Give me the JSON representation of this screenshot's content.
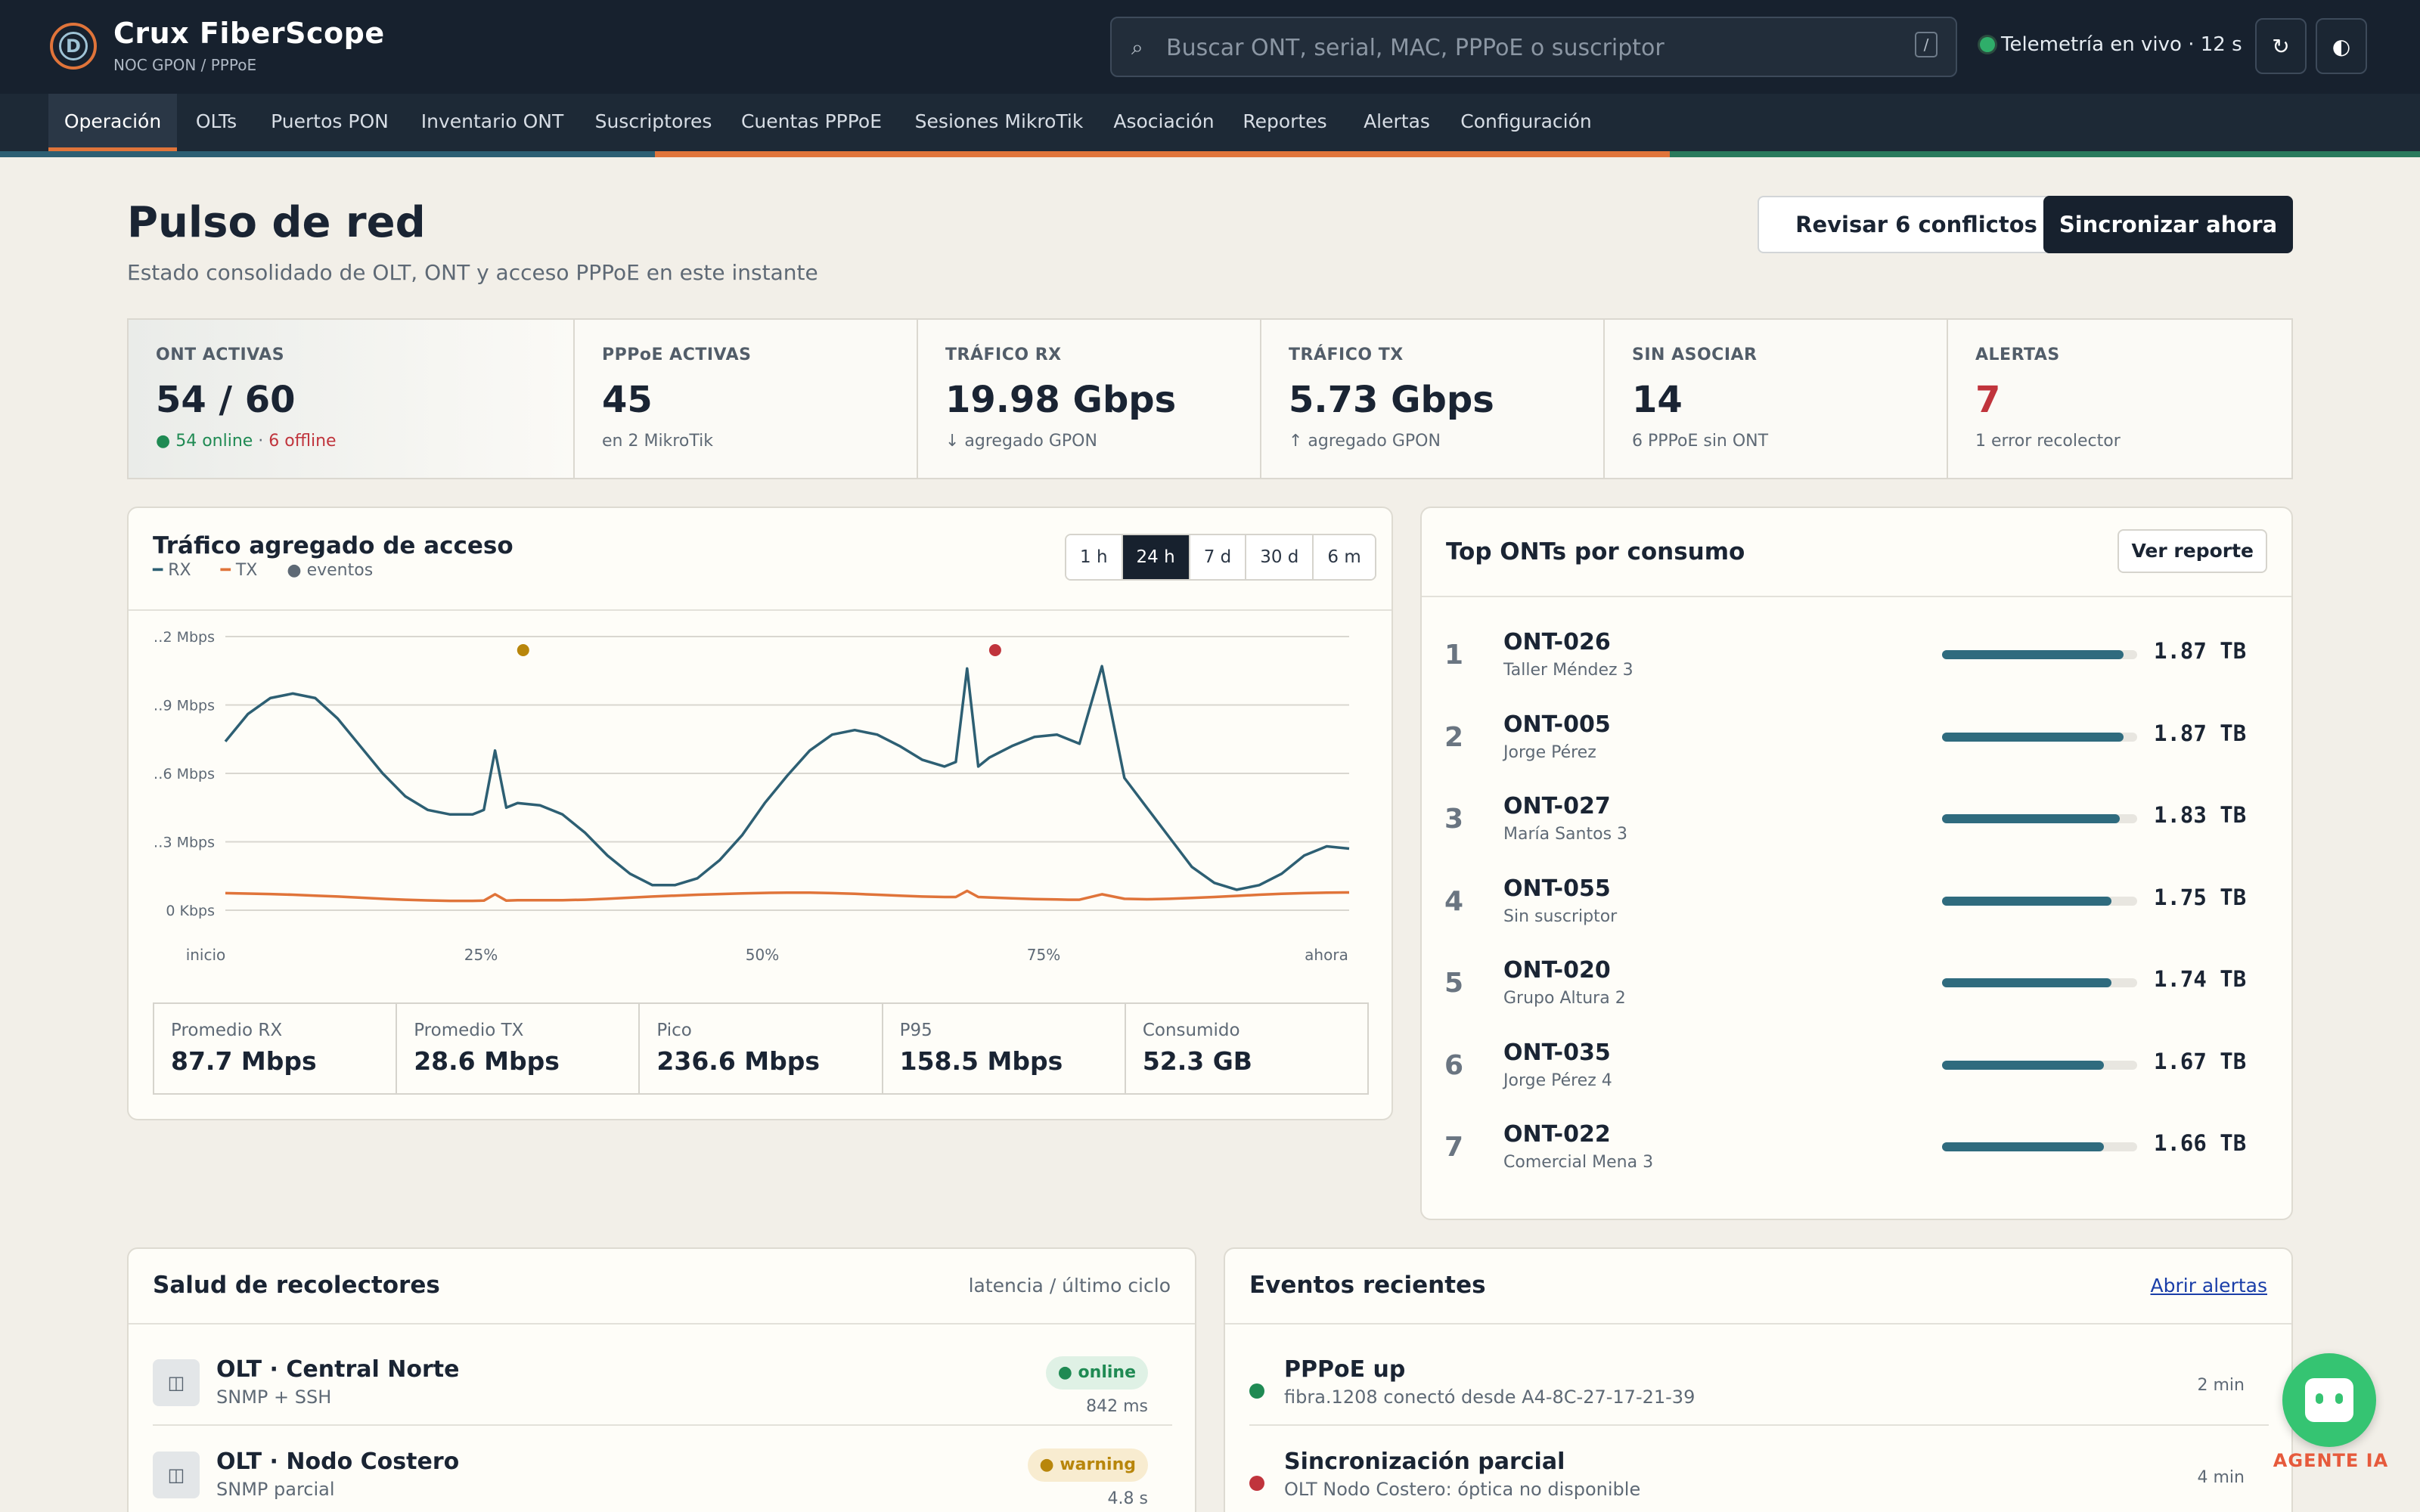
{
  "app": {
    "title": "Crux FiberScope",
    "subtitle": "NOC GPON / PPPoE",
    "logo_glyph": "D"
  },
  "search": {
    "placeholder": "Buscar ONT, serial, MAC, PPPoE o suscriptor",
    "shortcut": "/"
  },
  "telemetry": {
    "text": "Telemetría en vivo · 12 s"
  },
  "header_buttons": {
    "refresh_icon": "↻",
    "theme_icon": "◐"
  },
  "nav": [
    "Operación",
    "OLTs",
    "Puertos PON",
    "Inventario ONT",
    "Suscriptores",
    "Cuentas PPPoE",
    "Sesiones MikroTik",
    "Asociación",
    "Reportes",
    "Alertas",
    "Configuración"
  ],
  "nav_active": "Operación",
  "page": {
    "title": "Pulso de red",
    "subtitle": "Estado consolidado de OLT, ONT y acceso PPPoE en este instante",
    "conflicts_button": "Revisar 6 conflictos",
    "sync_button": "Sincronizar ahora"
  },
  "kpis": [
    {
      "label": "ONT ACTIVAS",
      "value": "54 / 60",
      "online": "54 online",
      "sep": " · ",
      "offline": "6 offline"
    },
    {
      "label": "PPPoE ACTIVAS",
      "value": "45",
      "sub": "en 2 MikroTik"
    },
    {
      "label": "TRÁFICO RX",
      "value": "19.98 Gbps",
      "sub": "↓ agregado GPON"
    },
    {
      "label": "TRÁFICO TX",
      "value": "5.73 Gbps",
      "sub": "↑ agregado GPON"
    },
    {
      "label": "SIN ASOCIAR",
      "value": "14",
      "sub": "6 PPPoE sin ONT"
    },
    {
      "label": "ALERTAS",
      "value": "7",
      "sub": "1 error recolector"
    }
  ],
  "colors": {
    "accent": "#e0743a",
    "rx": "#2d5f73",
    "tx": "#e0743a",
    "ok": "#1f8a53",
    "warn": "#b8860b",
    "err": "#c0343c"
  },
  "traffic": {
    "title": "Tráfico agregado de acceso",
    "legend": {
      "rx": "RX",
      "tx": "TX",
      "events": "eventos"
    },
    "ranges": [
      "1 h",
      "24 h",
      "7 d",
      "30 d",
      "6 m"
    ],
    "range_selected": "24 h",
    "stats": [
      {
        "label": "Promedio RX",
        "value": "87.7 Mbps"
      },
      {
        "label": "Promedio TX",
        "value": "28.6 Mbps"
      },
      {
        "label": "Pico",
        "value": "236.6 Mbps"
      },
      {
        "label": "P95",
        "value": "158.5 Mbps"
      },
      {
        "label": "Consumido",
        "value": "52.3 GB"
      }
    ]
  },
  "chart_data": {
    "type": "line",
    "x": [
      0,
      0.02,
      0.04,
      0.06,
      0.08,
      0.1,
      0.12,
      0.14,
      0.16,
      0.18,
      0.2,
      0.22,
      0.23,
      0.24,
      0.25,
      0.26,
      0.28,
      0.3,
      0.32,
      0.34,
      0.36,
      0.38,
      0.4,
      0.42,
      0.44,
      0.46,
      0.48,
      0.5,
      0.52,
      0.54,
      0.56,
      0.58,
      0.6,
      0.62,
      0.64,
      0.65,
      0.66,
      0.67,
      0.68,
      0.7,
      0.72,
      0.74,
      0.75,
      0.76,
      0.78,
      0.8,
      0.82,
      0.84,
      0.86,
      0.88,
      0.9,
      0.92,
      0.94,
      0.96,
      0.98,
      1.0
    ],
    "xticks": [
      "inicio",
      "25%",
      "50%",
      "75%",
      "ahora"
    ],
    "yticks": [
      "0 Kbps",
      "…3 Mbps",
      "…6 Mbps",
      "…9 Mbps",
      "…2 Mbps"
    ],
    "series": [
      {
        "name": "RX",
        "color": "#2d5f73",
        "values": [
          0.74,
          0.86,
          0.93,
          0.95,
          0.93,
          0.84,
          0.72,
          0.6,
          0.5,
          0.44,
          0.42,
          0.42,
          0.44,
          0.7,
          0.45,
          0.47,
          0.46,
          0.42,
          0.34,
          0.24,
          0.16,
          0.11,
          0.11,
          0.14,
          0.22,
          0.33,
          0.47,
          0.59,
          0.7,
          0.77,
          0.79,
          0.77,
          0.72,
          0.66,
          0.63,
          0.65,
          1.06,
          0.63,
          0.67,
          0.72,
          0.76,
          0.77,
          0.75,
          0.73,
          1.07,
          0.58,
          0.45,
          0.32,
          0.19,
          0.12,
          0.09,
          0.11,
          0.16,
          0.24,
          0.28,
          0.27
        ]
      },
      {
        "name": "TX",
        "color": "#e0743a",
        "values": [
          0.075,
          0.073,
          0.071,
          0.068,
          0.064,
          0.06,
          0.055,
          0.05,
          0.046,
          0.043,
          0.041,
          0.041,
          0.042,
          0.07,
          0.042,
          0.044,
          0.044,
          0.044,
          0.046,
          0.05,
          0.055,
          0.06,
          0.064,
          0.068,
          0.071,
          0.074,
          0.076,
          0.077,
          0.077,
          0.075,
          0.072,
          0.068,
          0.064,
          0.06,
          0.058,
          0.058,
          0.085,
          0.058,
          0.056,
          0.052,
          0.049,
          0.047,
          0.046,
          0.046,
          0.07,
          0.05,
          0.048,
          0.05,
          0.054,
          0.058,
          0.063,
          0.068,
          0.072,
          0.075,
          0.077,
          0.078
        ]
      }
    ],
    "events": [
      {
        "x": 0.265,
        "color": "#b8860b"
      },
      {
        "x": 0.685,
        "color": "#c0343c"
      }
    ],
    "ylim": [
      0,
      1.2
    ],
    "grid": true
  },
  "top": {
    "title": "Top ONTs por consumo",
    "button": "Ver reporte",
    "rows": [
      {
        "rank": "1",
        "name": "ONT-026",
        "owner": "Taller Méndez 3",
        "value": "1.87 TB",
        "share": 0.93
      },
      {
        "rank": "2",
        "name": "ONT-005",
        "owner": "Jorge Pérez",
        "value": "1.87 TB",
        "share": 0.93
      },
      {
        "rank": "3",
        "name": "ONT-027",
        "owner": "María Santos 3",
        "value": "1.83 TB",
        "share": 0.91
      },
      {
        "rank": "4",
        "name": "ONT-055",
        "owner": "Sin suscriptor",
        "value": "1.75 TB",
        "share": 0.87
      },
      {
        "rank": "5",
        "name": "ONT-020",
        "owner": "Grupo Altura 2",
        "value": "1.74 TB",
        "share": 0.87
      },
      {
        "rank": "6",
        "name": "ONT-035",
        "owner": "Jorge Pérez 4",
        "value": "1.67 TB",
        "share": 0.83
      },
      {
        "rank": "7",
        "name": "ONT-022",
        "owner": "Comercial Mena 3",
        "value": "1.66 TB",
        "share": 0.83
      }
    ]
  },
  "collectors": {
    "title": "Salud de recolectores",
    "meta": "latencia / último ciclo",
    "icon": "◫",
    "rows": [
      {
        "name": "OLT · Central Norte",
        "sub": "SNMP + SSH",
        "status": "● online",
        "latency": "842 ms"
      },
      {
        "name": "OLT · Nodo Costero",
        "sub": "SNMP parcial",
        "status": "● warning",
        "latency": "4.8 s"
      }
    ]
  },
  "events": {
    "title": "Eventos recientes",
    "link": "Abrir alertas",
    "rows": [
      {
        "title": "PPPoE up",
        "sub": "fibra.1208 conectó desde A4-8C-27-17-21-39",
        "time": "2 min"
      },
      {
        "title": "Sincronización parcial",
        "sub": "OLT Nodo Costero: óptica no disponible",
        "time": "4 min"
      }
    ]
  },
  "agent": {
    "label": "AGENTE IA"
  }
}
